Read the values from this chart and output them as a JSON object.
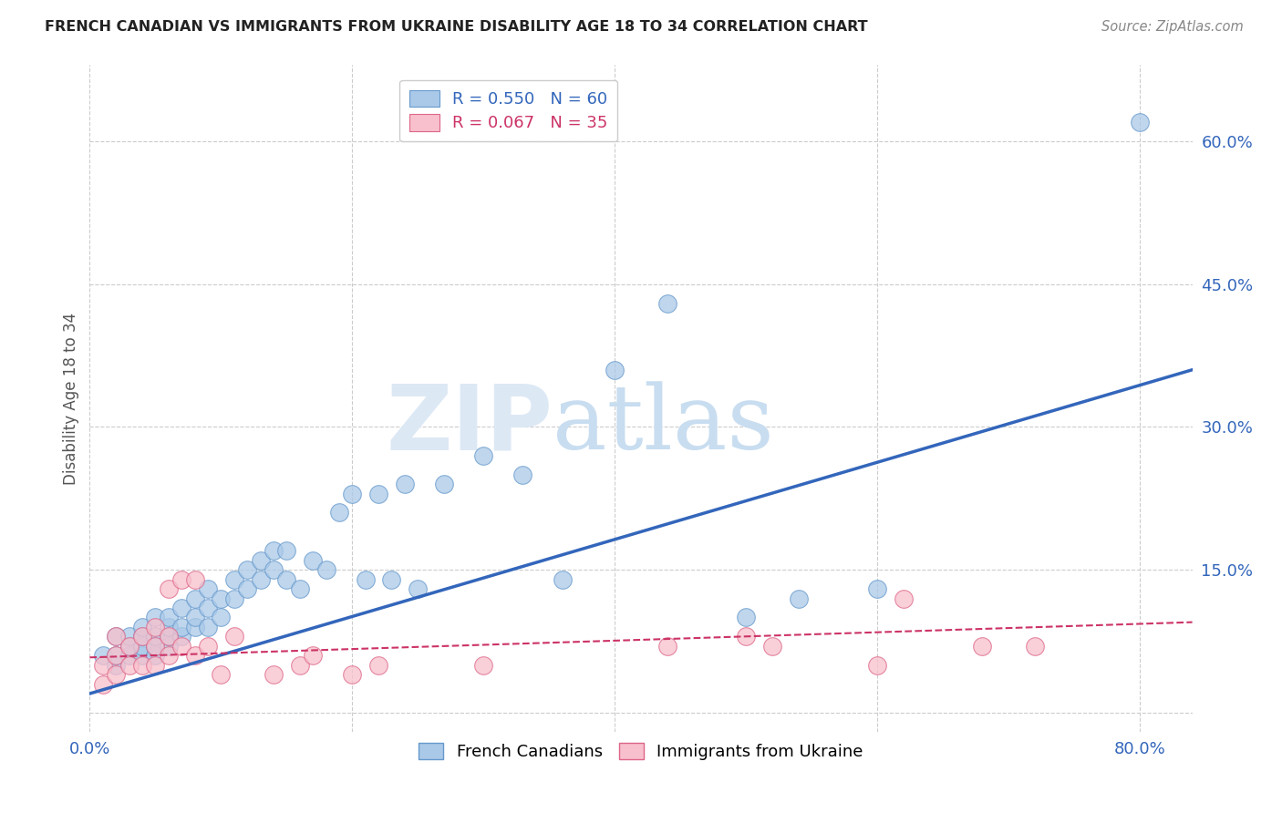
{
  "title": "FRENCH CANADIAN VS IMMIGRANTS FROM UKRAINE DISABILITY AGE 18 TO 34 CORRELATION CHART",
  "source": "Source: ZipAtlas.com",
  "ylabel": "Disability Age 18 to 34",
  "xlabel": "",
  "xlim": [
    0.0,
    0.84
  ],
  "ylim": [
    -0.02,
    0.68
  ],
  "xticks": [
    0.0,
    0.2,
    0.4,
    0.6,
    0.8
  ],
  "xtick_labels": [
    "0.0%",
    "",
    "",
    "",
    "80.0%"
  ],
  "ytick_positions_right": [
    0.0,
    0.15,
    0.3,
    0.45,
    0.6
  ],
  "ytick_labels_right": [
    "",
    "15.0%",
    "30.0%",
    "45.0%",
    "60.0%"
  ],
  "background_color": "#ffffff",
  "watermark_zip": "ZIP",
  "watermark_atlas": "atlas",
  "french_canadians": {
    "color": "#aac9e8",
    "edge_color": "#6699cc",
    "line_color": "#3366bb",
    "R": 0.55,
    "N": 60,
    "x": [
      0.01,
      0.02,
      0.02,
      0.02,
      0.03,
      0.03,
      0.03,
      0.04,
      0.04,
      0.04,
      0.04,
      0.05,
      0.05,
      0.05,
      0.05,
      0.06,
      0.06,
      0.06,
      0.06,
      0.07,
      0.07,
      0.07,
      0.08,
      0.08,
      0.08,
      0.09,
      0.09,
      0.09,
      0.1,
      0.1,
      0.11,
      0.11,
      0.12,
      0.12,
      0.13,
      0.13,
      0.14,
      0.14,
      0.15,
      0.15,
      0.16,
      0.17,
      0.18,
      0.19,
      0.2,
      0.21,
      0.22,
      0.23,
      0.24,
      0.25,
      0.27,
      0.3,
      0.33,
      0.36,
      0.4,
      0.44,
      0.5,
      0.54,
      0.6,
      0.8
    ],
    "y": [
      0.06,
      0.05,
      0.06,
      0.08,
      0.06,
      0.07,
      0.08,
      0.06,
      0.07,
      0.08,
      0.09,
      0.06,
      0.07,
      0.08,
      0.1,
      0.07,
      0.08,
      0.09,
      0.1,
      0.08,
      0.09,
      0.11,
      0.09,
      0.1,
      0.12,
      0.09,
      0.11,
      0.13,
      0.1,
      0.12,
      0.12,
      0.14,
      0.13,
      0.15,
      0.14,
      0.16,
      0.15,
      0.17,
      0.14,
      0.17,
      0.13,
      0.16,
      0.15,
      0.21,
      0.23,
      0.14,
      0.23,
      0.14,
      0.24,
      0.13,
      0.24,
      0.27,
      0.25,
      0.14,
      0.36,
      0.43,
      0.1,
      0.12,
      0.13,
      0.62
    ],
    "trendline_x": [
      0.0,
      0.84
    ],
    "trendline_y": [
      0.02,
      0.36
    ]
  },
  "ukraine_immigrants": {
    "color": "#f8c0cc",
    "edge_color": "#dd6688",
    "line_color": "#cc3366",
    "R": 0.067,
    "N": 35,
    "x": [
      0.01,
      0.01,
      0.02,
      0.02,
      0.02,
      0.03,
      0.03,
      0.04,
      0.04,
      0.05,
      0.05,
      0.05,
      0.06,
      0.06,
      0.06,
      0.07,
      0.07,
      0.08,
      0.08,
      0.09,
      0.1,
      0.11,
      0.14,
      0.16,
      0.17,
      0.2,
      0.22,
      0.3,
      0.44,
      0.5,
      0.52,
      0.6,
      0.62,
      0.68,
      0.72
    ],
    "y": [
      0.03,
      0.05,
      0.04,
      0.06,
      0.08,
      0.05,
      0.07,
      0.05,
      0.08,
      0.05,
      0.07,
      0.09,
      0.06,
      0.08,
      0.13,
      0.14,
      0.07,
      0.06,
      0.14,
      0.07,
      0.04,
      0.08,
      0.04,
      0.05,
      0.06,
      0.04,
      0.05,
      0.05,
      0.07,
      0.08,
      0.07,
      0.05,
      0.12,
      0.07,
      0.07
    ],
    "trendline_x": [
      0.0,
      0.84
    ],
    "trendline_y": [
      0.058,
      0.095
    ]
  }
}
